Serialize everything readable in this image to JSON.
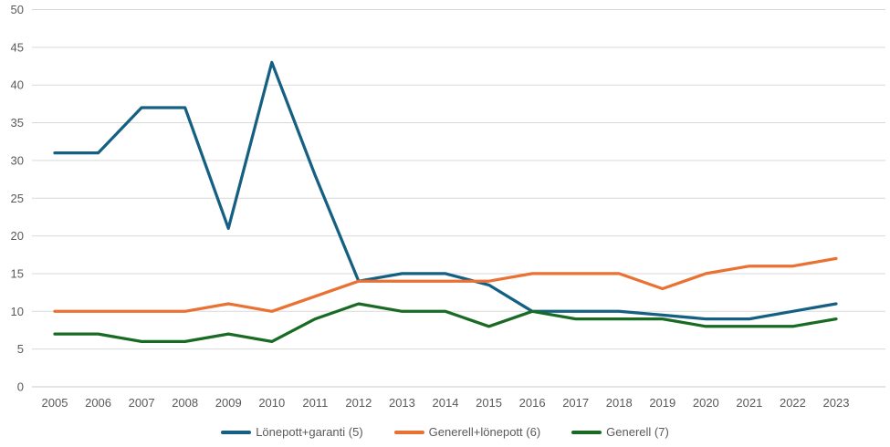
{
  "chart_data": {
    "type": "line",
    "title": "",
    "xlabel": "",
    "ylabel": "",
    "categories": [
      "2005",
      "2006",
      "2007",
      "2008",
      "2009",
      "2010",
      "2011",
      "2012",
      "2013",
      "2014",
      "2015",
      "2016",
      "2017",
      "2018",
      "2019",
      "2020",
      "2021",
      "2022",
      "2023"
    ],
    "series": [
      {
        "name": "Lönepott+garanti (5)",
        "color": "#156082",
        "values": [
          31,
          31,
          37,
          37,
          21,
          43,
          28,
          14,
          15,
          15,
          13.5,
          10,
          10,
          10,
          9.5,
          9,
          9,
          10,
          11
        ]
      },
      {
        "name": "Generell+lönepott (6)",
        "color": "#E97132",
        "values": [
          10,
          10,
          10,
          10,
          11,
          10,
          12,
          14,
          14,
          14,
          14,
          15,
          15,
          15,
          13,
          15,
          16,
          16,
          17
        ]
      },
      {
        "name": "Generell (7)",
        "color": "#196B24",
        "values": [
          7,
          7,
          6,
          6,
          7,
          6,
          9,
          11,
          10,
          10,
          8,
          10,
          9,
          9,
          9,
          8,
          8,
          8,
          9
        ]
      }
    ],
    "ylim": [
      0,
      50
    ],
    "yticks": [
      0,
      5,
      10,
      15,
      20,
      25,
      30,
      35,
      40,
      45,
      50
    ],
    "grid": "horizontal-only",
    "gridline_color": "#D9D9D9",
    "axis_line_color": "#C9C9C9",
    "tick_label_color": "#595959",
    "legend_position": "bottom"
  }
}
